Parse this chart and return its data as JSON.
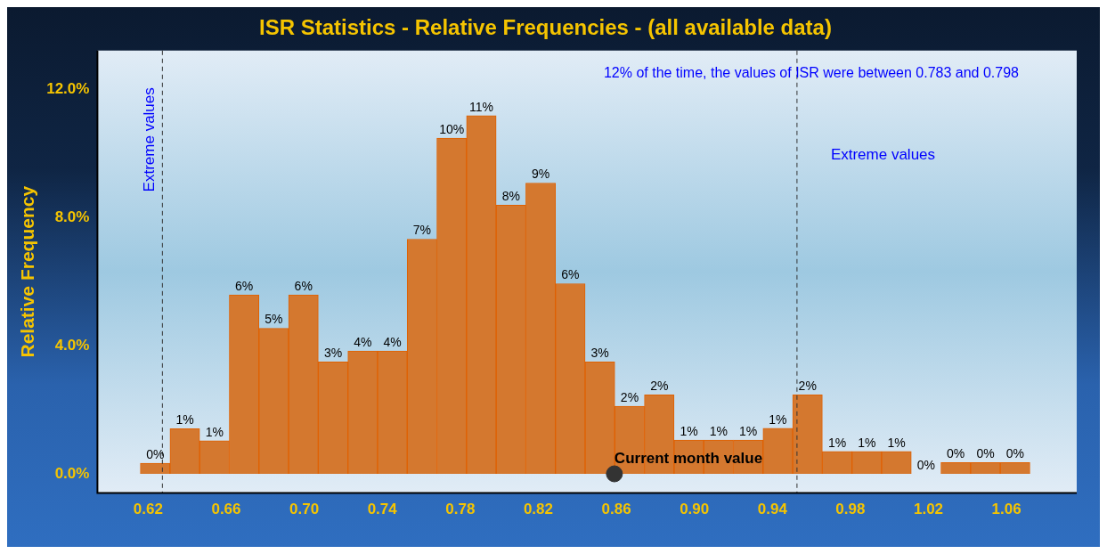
{
  "chart_data": {
    "type": "histogram",
    "title": "ISR Statistics - Relative Frequencies - (all available data)",
    "ylabel": "Relative Frequency",
    "bins": [
      0.616,
      0.6312,
      0.6464,
      0.6616,
      0.6768,
      0.692,
      0.7072,
      0.7224,
      0.7376,
      0.7528,
      0.768,
      0.7832,
      0.7984,
      0.8136,
      0.8288,
      0.844,
      0.8592,
      0.8744,
      0.8896,
      0.9048,
      0.92,
      0.9352,
      0.9504,
      0.9656,
      0.9808,
      0.996,
      1.0112,
      1.0264,
      1.0416,
      1.0568,
      1.072
    ],
    "series": [
      {
        "color": "#d4782f",
        "values": [
          0.33,
          1.41,
          1.03,
          5.58,
          4.54,
          5.58,
          3.49,
          3.83,
          3.83,
          7.32,
          10.47,
          11.17,
          8.38,
          9.07,
          5.93,
          3.49,
          2.11,
          2.46,
          1.05,
          1.05,
          1.05,
          1.42,
          2.46,
          0.7,
          0.7,
          0.7,
          0,
          0.35,
          0.35,
          0.35
        ],
        "value_labels": [
          "0%",
          "1%",
          "1%",
          "6%",
          "5%",
          "6%",
          "3%",
          "4%",
          "4%",
          "7%",
          "10%",
          "11%",
          "8%",
          "9%",
          "6%",
          "3%",
          "2%",
          "2%",
          "1%",
          "1%",
          "1%",
          "1%",
          "2%",
          "1%",
          "1%",
          "1%",
          "0%",
          "0%",
          "0%",
          "0%"
        ]
      },
      {
        "type": "scatter",
        "name": "Current month value",
        "color": "#333333",
        "x": [
          0.859
        ],
        "values": [
          0
        ]
      }
    ],
    "xlim": [
      0.594,
      1.096
    ],
    "xticks": [
      {
        "value": 0.62,
        "label": "0.62"
      },
      {
        "value": 0.66,
        "label": "0.66"
      },
      {
        "value": 0.7,
        "label": "0.70"
      },
      {
        "value": 0.74,
        "label": "0.74"
      },
      {
        "value": 0.78,
        "label": "0.78"
      },
      {
        "value": 0.82,
        "label": "0.82"
      },
      {
        "value": 0.86,
        "label": "0.86"
      },
      {
        "value": 0.9,
        "label": "0.90"
      },
      {
        "value": 0.94,
        "label": "0.94"
      },
      {
        "value": 0.98,
        "label": "0.98"
      },
      {
        "value": 1.02,
        "label": "1.02"
      },
      {
        "value": 1.06,
        "label": "1.06"
      }
    ],
    "ylim": [
      -0.6,
      13.2
    ],
    "yticks": [
      {
        "value": 0,
        "label": "0.0%"
      },
      {
        "value": 4,
        "label": "4.0%"
      },
      {
        "value": 8,
        "label": "8.0%"
      },
      {
        "value": 12,
        "label": "12.0%"
      }
    ],
    "ref_lines": [
      {
        "axis": "x",
        "value": 0.6273,
        "label": "Extreme values",
        "color": "#333333",
        "line_style": "dashed"
      },
      {
        "axis": "x",
        "value": 0.9526,
        "label": "Extreme values",
        "color": "#333333",
        "line_style": "dashed"
      }
    ],
    "annotations": [
      "12% of the time, the values of ISR were between 0.783 and 0.798"
    ],
    "legend": false,
    "marker": "circle"
  }
}
